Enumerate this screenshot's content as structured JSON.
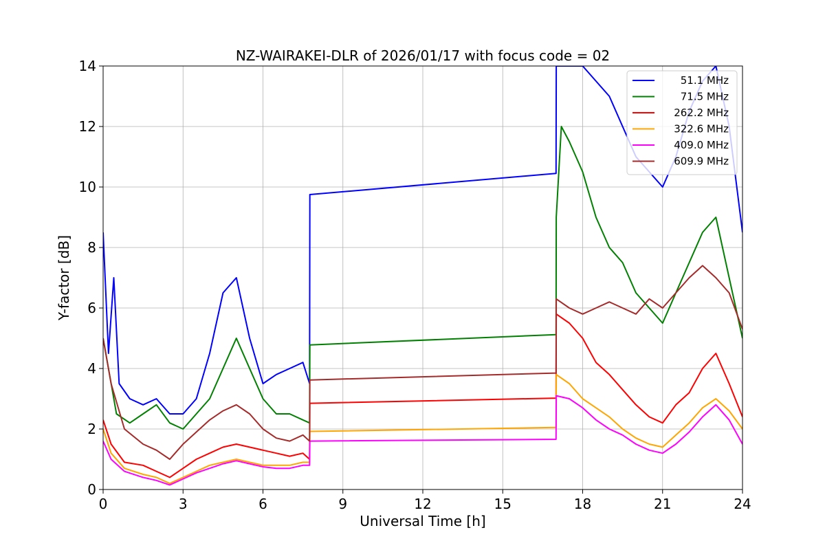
{
  "chart_data": {
    "type": "line",
    "title": "NZ-WAIRAKEI-DLR of 2026/01/17 with focus code = 02",
    "xlabel": "Universal Time [h]",
    "ylabel": "Y-factor [dB]",
    "xlim": [
      0,
      24
    ],
    "ylim": [
      0,
      14
    ],
    "xticks": [
      0,
      3,
      6,
      9,
      12,
      15,
      18,
      21,
      24
    ],
    "yticks": [
      0,
      2,
      4,
      6,
      8,
      10,
      12,
      14
    ],
    "grid": true,
    "legend_position": "top-right",
    "series": [
      {
        "name": "51.1 MHz",
        "color": "#0000ff",
        "x": [
          0,
          0.2,
          0.4,
          0.6,
          1.0,
          1.5,
          2.0,
          2.5,
          3.0,
          3.5,
          4.0,
          4.5,
          5.0,
          5.5,
          6.0,
          6.5,
          7.0,
          7.5,
          7.75,
          7.76,
          17.0,
          17.01,
          17.5,
          18.0,
          18.5,
          19.0,
          19.5,
          20.0,
          20.5,
          21.0,
          21.5,
          22.0,
          22.5,
          23.0,
          23.5,
          24.0
        ],
        "y": [
          8.5,
          4.5,
          7.0,
          3.5,
          3.0,
          2.8,
          3.0,
          2.5,
          2.5,
          3.0,
          4.5,
          6.5,
          7.0,
          5.0,
          3.5,
          3.8,
          4.0,
          4.2,
          3.5,
          9.75,
          10.45,
          14.0,
          14.0,
          14.0,
          13.5,
          13.0,
          12.0,
          11.0,
          10.5,
          10.0,
          11.0,
          12.5,
          13.5,
          14.0,
          12.0,
          8.5
        ]
      },
      {
        "name": "71.5 MHz",
        "color": "#008000",
        "x": [
          0,
          0.2,
          0.5,
          1.0,
          1.5,
          2.0,
          2.5,
          3.0,
          3.5,
          4.0,
          4.5,
          5.0,
          5.5,
          6.0,
          6.5,
          7.0,
          7.5,
          7.75,
          7.76,
          17.0,
          17.01,
          17.2,
          17.5,
          18.0,
          18.5,
          19.0,
          19.5,
          20.0,
          20.5,
          21.0,
          21.5,
          22.0,
          22.5,
          23.0,
          23.5,
          24.0
        ],
        "y": [
          5.0,
          4.0,
          2.5,
          2.2,
          2.5,
          2.8,
          2.2,
          2.0,
          2.5,
          3.0,
          4.0,
          5.0,
          4.0,
          3.0,
          2.5,
          2.5,
          2.3,
          2.2,
          4.78,
          5.12,
          9.0,
          12.0,
          11.5,
          10.5,
          9.0,
          8.0,
          7.5,
          6.5,
          6.0,
          5.5,
          6.5,
          7.5,
          8.5,
          9.0,
          7.0,
          5.0
        ]
      },
      {
        "name": "262.2 MHz",
        "color": "#ff0000",
        "x": [
          0,
          0.3,
          0.8,
          1.5,
          2.0,
          2.5,
          3.0,
          3.5,
          4.0,
          4.5,
          5.0,
          5.5,
          6.0,
          6.5,
          7.0,
          7.5,
          7.75,
          7.76,
          17.0,
          17.01,
          17.5,
          18.0,
          18.5,
          19.0,
          19.5,
          20.0,
          20.5,
          21.0,
          21.5,
          22.0,
          22.5,
          23.0,
          23.5,
          24.0
        ],
        "y": [
          2.3,
          1.5,
          0.9,
          0.8,
          0.6,
          0.4,
          0.7,
          1.0,
          1.2,
          1.4,
          1.5,
          1.4,
          1.3,
          1.2,
          1.1,
          1.2,
          1.0,
          2.85,
          3.02,
          5.8,
          5.5,
          5.0,
          4.2,
          3.8,
          3.3,
          2.8,
          2.4,
          2.2,
          2.8,
          3.2,
          4.0,
          4.5,
          3.5,
          2.4
        ]
      },
      {
        "name": "322.6 MHz",
        "color": "#ffa500",
        "x": [
          0,
          0.3,
          0.8,
          1.5,
          2.0,
          2.5,
          3.0,
          3.5,
          4.0,
          4.5,
          5.0,
          5.5,
          6.0,
          6.5,
          7.0,
          7.5,
          7.75,
          7.76,
          17.0,
          17.01,
          17.5,
          18.0,
          18.5,
          19.0,
          19.5,
          20.0,
          20.5,
          21.0,
          21.5,
          22.0,
          22.5,
          23.0,
          23.5,
          24.0
        ],
        "y": [
          2.0,
          1.2,
          0.7,
          0.5,
          0.4,
          0.2,
          0.4,
          0.6,
          0.8,
          0.9,
          1.0,
          0.9,
          0.8,
          0.8,
          0.8,
          0.9,
          0.9,
          1.92,
          2.05,
          3.8,
          3.5,
          3.0,
          2.7,
          2.4,
          2.0,
          1.7,
          1.5,
          1.4,
          1.8,
          2.2,
          2.7,
          3.0,
          2.6,
          2.0
        ]
      },
      {
        "name": "409.0 MHz",
        "color": "#ff00ff",
        "x": [
          0,
          0.3,
          0.8,
          1.5,
          2.0,
          2.5,
          3.0,
          3.5,
          4.0,
          4.5,
          5.0,
          5.5,
          6.0,
          6.5,
          7.0,
          7.5,
          7.75,
          7.76,
          17.0,
          17.01,
          17.5,
          18.0,
          18.5,
          19.0,
          19.5,
          20.0,
          20.5,
          21.0,
          21.5,
          22.0,
          22.5,
          23.0,
          23.5,
          24.0
        ],
        "y": [
          1.6,
          1.0,
          0.6,
          0.4,
          0.3,
          0.15,
          0.35,
          0.55,
          0.7,
          0.85,
          0.95,
          0.85,
          0.75,
          0.7,
          0.7,
          0.8,
          0.8,
          1.6,
          1.66,
          3.1,
          3.0,
          2.7,
          2.3,
          2.0,
          1.8,
          1.5,
          1.3,
          1.2,
          1.5,
          1.9,
          2.4,
          2.8,
          2.3,
          1.5
        ]
      },
      {
        "name": "609.9 MHz",
        "color": "#a52a2a",
        "x": [
          0,
          0.3,
          0.8,
          1.5,
          2.0,
          2.5,
          3.0,
          3.5,
          4.0,
          4.5,
          5.0,
          5.5,
          6.0,
          6.5,
          7.0,
          7.5,
          7.75,
          7.76,
          17.0,
          17.01,
          17.5,
          18.0,
          18.5,
          19.0,
          19.5,
          20.0,
          20.5,
          21.0,
          21.5,
          22.0,
          22.5,
          23.0,
          23.5,
          24.0
        ],
        "y": [
          5.0,
          3.5,
          2.0,
          1.5,
          1.3,
          1.0,
          1.5,
          1.9,
          2.3,
          2.6,
          2.8,
          2.5,
          2.0,
          1.7,
          1.6,
          1.8,
          1.6,
          3.62,
          3.85,
          6.3,
          6.0,
          5.8,
          6.0,
          6.2,
          6.0,
          5.8,
          6.3,
          6.0,
          6.5,
          7.0,
          7.4,
          7.0,
          6.5,
          5.3
        ]
      }
    ]
  }
}
